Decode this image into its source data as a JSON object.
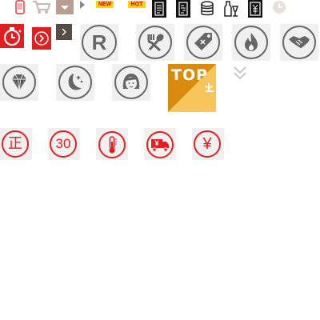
{
  "sprite": {
    "badges": {
      "new_label": "NEW",
      "hot_label": "HOT"
    },
    "top_banner": {
      "label": "TOP",
      "colors": {
        "dark": "#d98b10",
        "light": "#f8c55a"
      }
    },
    "red_symbols": {
      "zheng": "正",
      "thirty": "30",
      "yuan": "¥",
      "truck_yuan": "¥"
    },
    "circle_letters": {
      "registered": "R"
    },
    "icons": [
      "phone-icon",
      "cart-icon",
      "dropdown-arrow-icon",
      "play-arrow-icon",
      "document-icon",
      "invoice-icon",
      "coins-stack-icon",
      "drinks-icon",
      "money-note-icon",
      "clock-icon",
      "stopwatch-icon",
      "next-circle-icon",
      "next-square-icon",
      "registered-icon",
      "fork-spoon-icon",
      "price-tag-icon",
      "flame-icon",
      "handshake-icon",
      "diamond-icon",
      "moon-stars-icon",
      "girl-face-icon",
      "double-chevron-down-icon",
      "zheng-icon",
      "thirty-days-icon",
      "thermometer-icon",
      "delivery-truck-icon",
      "yuan-icon"
    ],
    "colors": {
      "red": "#e02020",
      "grey_icon": "#666666",
      "tile_bg": "#f0f0f0",
      "badge_yellow": "#ffd400"
    }
  }
}
